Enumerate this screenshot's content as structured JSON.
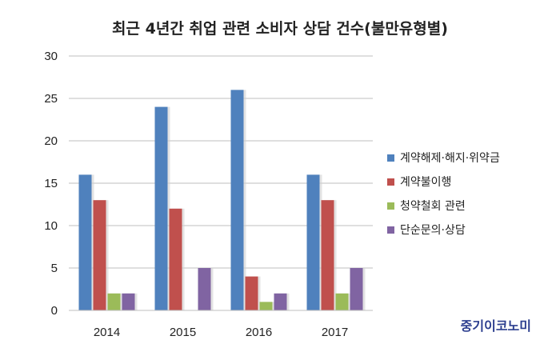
{
  "chart_data": {
    "type": "bar",
    "title": "최근 4년간 취업 관련 소비자 상담 건수(불만유형별)",
    "categories": [
      "2014",
      "2015",
      "2016",
      "2017"
    ],
    "series": [
      {
        "name": "계약해제·해지·위약금",
        "color": "#4f81bd",
        "values": [
          16,
          24,
          26,
          16
        ]
      },
      {
        "name": "계약불이행",
        "color": "#c0504d",
        "values": [
          13,
          12,
          4,
          13
        ]
      },
      {
        "name": "청약철회 관련",
        "color": "#9bbb59",
        "values": [
          2,
          0,
          1,
          2
        ]
      },
      {
        "name": "단순문의·상담",
        "color": "#8064a2",
        "values": [
          2,
          5,
          2,
          5
        ]
      }
    ],
    "ylim": [
      0,
      30
    ],
    "yticks": [
      0,
      5,
      10,
      15,
      20,
      25,
      30
    ],
    "grid": true,
    "legend": "right"
  },
  "source": "중기이코노미"
}
